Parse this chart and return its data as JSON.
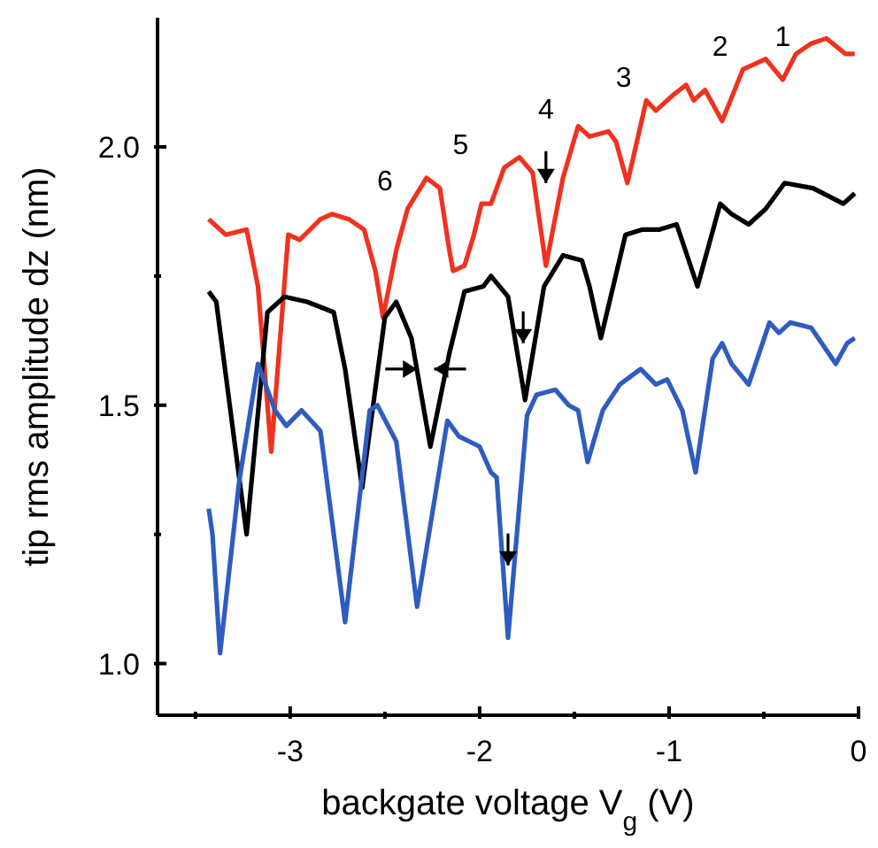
{
  "chart_data": {
    "type": "line",
    "xlabel": "backgate voltage V$_{g}$ (V)",
    "ylabel": "tip rms amplitude dz (nm)",
    "xlim": [
      -3.7,
      0
    ],
    "ylim": [
      0.9,
      2.25
    ],
    "xticks": [
      {
        "value": -3.5,
        "label": null
      },
      -3,
      {
        "value": -2.5,
        "label": null
      },
      -2,
      {
        "value": -1.5,
        "label": null
      },
      -1,
      {
        "value": -0.5,
        "label": null
      },
      0
    ],
    "yticks": [
      {
        "value": 1,
        "label": "1.0"
      },
      {
        "value": 1.25,
        "label": null
      },
      {
        "value": 1.5,
        "label": "1.5"
      },
      {
        "value": 1.75,
        "label": null
      },
      {
        "value": 2,
        "label": "2.0"
      }
    ],
    "marker": "none",
    "line_style": "solid",
    "annotations": [
      "1",
      "2",
      "3",
      "4",
      "5",
      "6"
    ],
    "series": [
      {
        "color": "#f0321e",
        "x": [
          -3.43,
          -3.34,
          -3.23,
          -3.17,
          -3.1,
          -3.01,
          -2.95,
          -2.84,
          -2.78,
          -2.69,
          -2.61,
          -2.55,
          -2.51,
          -2.44,
          -2.38,
          -2.28,
          -2.21,
          -2.16,
          -2.14,
          -2.08,
          -2.03,
          -1.99,
          -1.94,
          -1.87,
          -1.79,
          -1.72,
          -1.65,
          -1.56,
          -1.48,
          -1.42,
          -1.32,
          -1.28,
          -1.22,
          -1.12,
          -1.07,
          -0.98,
          -0.91,
          -0.87,
          -0.81,
          -0.72,
          -0.61,
          -0.49,
          -0.4,
          -0.33,
          -0.25,
          -0.17,
          -0.07,
          -0.02
        ],
        "values": [
          1.86,
          1.83,
          1.84,
          1.73,
          1.41,
          1.83,
          1.82,
          1.86,
          1.87,
          1.86,
          1.84,
          1.76,
          1.67,
          1.8,
          1.88,
          1.94,
          1.92,
          1.8,
          1.76,
          1.77,
          1.83,
          1.89,
          1.89,
          1.96,
          1.98,
          1.95,
          1.77,
          1.94,
          2.04,
          2.02,
          2.03,
          2.01,
          1.93,
          2.09,
          2.07,
          2.1,
          2.12,
          2.09,
          2.11,
          2.05,
          2.15,
          2.17,
          2.13,
          2.18,
          2.2,
          2.21,
          2.18,
          2.18
        ]
      },
      {
        "color": "#000000",
        "x": [
          -3.43,
          -3.39,
          -3.23,
          -3.12,
          -3.03,
          -2.91,
          -2.77,
          -2.71,
          -2.62,
          -2.5,
          -2.44,
          -2.36,
          -2.26,
          -2.16,
          -2.08,
          -1.98,
          -1.94,
          -1.85,
          -1.76,
          -1.66,
          -1.56,
          -1.46,
          -1.42,
          -1.36,
          -1.23,
          -1.14,
          -1.05,
          -0.96,
          -0.85,
          -0.73,
          -0.67,
          -0.58,
          -0.49,
          -0.39,
          -0.24,
          -0.08,
          -0.02
        ],
        "values": [
          1.72,
          1.7,
          1.25,
          1.68,
          1.71,
          1.7,
          1.68,
          1.57,
          1.34,
          1.67,
          1.7,
          1.63,
          1.42,
          1.6,
          1.72,
          1.73,
          1.75,
          1.71,
          1.51,
          1.73,
          1.79,
          1.78,
          1.73,
          1.63,
          1.83,
          1.84,
          1.84,
          1.85,
          1.73,
          1.89,
          1.87,
          1.85,
          1.88,
          1.93,
          1.92,
          1.89,
          1.91
        ]
      },
      {
        "color": "#2f5cc0",
        "x": [
          -3.43,
          -3.41,
          -3.37,
          -3.27,
          -3.17,
          -3.08,
          -3.02,
          -2.94,
          -2.84,
          -2.71,
          -2.58,
          -2.54,
          -2.44,
          -2.33,
          -2.17,
          -2.11,
          -2.0,
          -1.94,
          -1.91,
          -1.85,
          -1.75,
          -1.7,
          -1.6,
          -1.53,
          -1.48,
          -1.43,
          -1.35,
          -1.26,
          -1.15,
          -1.07,
          -1.01,
          -0.93,
          -0.86,
          -0.77,
          -0.72,
          -0.67,
          -0.58,
          -0.47,
          -0.42,
          -0.36,
          -0.25,
          -0.12,
          -0.06,
          -0.02
        ],
        "values": [
          1.3,
          1.25,
          1.02,
          1.35,
          1.58,
          1.49,
          1.46,
          1.49,
          1.45,
          1.08,
          1.49,
          1.5,
          1.43,
          1.11,
          1.47,
          1.44,
          1.42,
          1.37,
          1.36,
          1.05,
          1.48,
          1.52,
          1.53,
          1.5,
          1.49,
          1.39,
          1.49,
          1.54,
          1.57,
          1.54,
          1.55,
          1.49,
          1.37,
          1.59,
          1.62,
          1.58,
          1.54,
          1.66,
          1.64,
          1.66,
          1.65,
          1.58,
          1.62,
          1.63
        ]
      }
    ]
  }
}
